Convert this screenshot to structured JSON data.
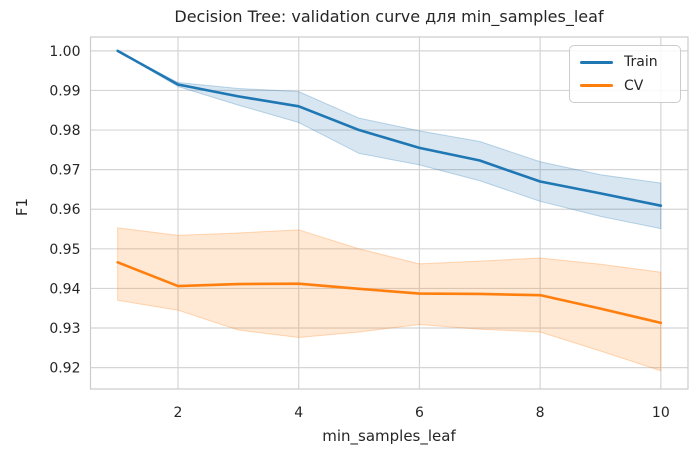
{
  "figure": {
    "background": "#ffffff"
  },
  "chart_data": {
    "type": "line",
    "title": "Decision Tree: validation curve для min_samples_leaf",
    "xlabel": "min_samples_leaf",
    "ylabel": "F1",
    "x": [
      1,
      2,
      3,
      4,
      5,
      6,
      7,
      8,
      9,
      10
    ],
    "series": [
      {
        "name": "Train",
        "color": "#1f77b4",
        "values": [
          1.0,
          0.9915,
          0.9885,
          0.986,
          0.98,
          0.9755,
          0.9723,
          0.967,
          0.964,
          0.9609
        ],
        "band_upper": [
          1.0,
          0.992,
          0.9905,
          0.9897,
          0.983,
          0.9798,
          0.9771,
          0.972,
          0.9687,
          0.9666
        ],
        "band_lower": [
          1.0,
          0.991,
          0.9863,
          0.9819,
          0.9741,
          0.9712,
          0.9672,
          0.962,
          0.9582,
          0.9551
        ]
      },
      {
        "name": "CV",
        "color": "#ff7f0e",
        "values": [
          0.9466,
          0.9406,
          0.9411,
          0.9412,
          0.9399,
          0.9387,
          0.9386,
          0.9383,
          0.9349,
          0.9313
        ],
        "band_upper": [
          0.9553,
          0.9534,
          0.954,
          0.9548,
          0.95,
          0.9462,
          0.9469,
          0.9477,
          0.9461,
          0.9441
        ],
        "band_lower": [
          0.937,
          0.9345,
          0.9295,
          0.9276,
          0.929,
          0.9309,
          0.9297,
          0.929,
          0.9242,
          0.9192
        ]
      }
    ],
    "xticks": [
      {
        "value": 2,
        "label": "2"
      },
      {
        "value": 4,
        "label": "4"
      },
      {
        "value": 6,
        "label": "6"
      },
      {
        "value": 8,
        "label": "8"
      },
      {
        "value": 10,
        "label": "10"
      }
    ],
    "yticks": [
      {
        "value": 1.0,
        "label": "1.00"
      },
      {
        "value": 0.99,
        "label": "0.99"
      },
      {
        "value": 0.98,
        "label": "0.98"
      },
      {
        "value": 0.97,
        "label": "0.97"
      },
      {
        "value": 0.96,
        "label": "0.96"
      },
      {
        "value": 0.95,
        "label": "0.95"
      },
      {
        "value": 0.94,
        "label": "0.94"
      },
      {
        "value": 0.93,
        "label": "0.93"
      },
      {
        "value": 0.92,
        "label": "0.92"
      }
    ],
    "xlim": [
      0.55,
      10.45
    ],
    "ylim": [
      0.9146,
      1.0035
    ],
    "grid": true,
    "legend": {
      "position": "upper right",
      "entries": [
        "Train",
        "CV"
      ]
    },
    "style": {
      "band_alpha": 0.18,
      "grid_color": "#d5d5d5",
      "spine_color": "#cccccc",
      "text_color": "#262626",
      "line_width": 2.6
    }
  }
}
